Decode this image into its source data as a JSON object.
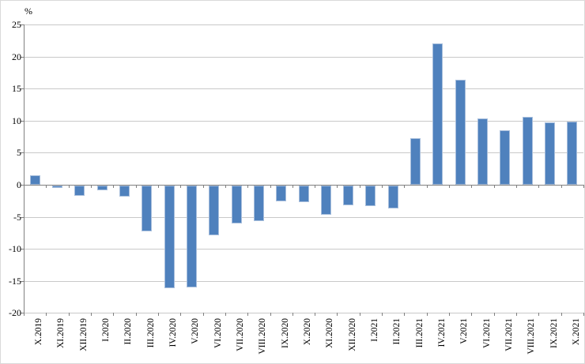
{
  "chart_data": {
    "type": "bar",
    "title": "",
    "xlabel": "",
    "ylabel": "%",
    "categories": [
      "X.2019",
      "XI.2019",
      "XII.2019",
      "I.2020",
      "II.2020",
      "III.2020",
      "IV.2020",
      "V.2020",
      "VI.2020",
      "VII.2020",
      "VIII.2020",
      "IX.2020",
      "X.2020",
      "XI.2020",
      "XII.2020",
      "I.2021",
      "II.2021",
      "III.2021",
      "IV.2021",
      "V.2021",
      "VI.2021",
      "VII.2021",
      "VIII.2021",
      "IX.2021",
      "X.2021"
    ],
    "values": [
      1.5,
      -0.4,
      -1.6,
      -0.7,
      -1.7,
      -7.1,
      -16.0,
      -15.9,
      -7.7,
      -5.9,
      -5.5,
      -2.5,
      -2.6,
      -4.5,
      -3.1,
      -3.2,
      -3.6,
      7.3,
      22.1,
      16.4,
      10.4,
      8.5,
      10.6,
      9.7,
      9.8
    ],
    "ylim": [
      -20,
      25
    ],
    "yticks": [
      25,
      20,
      15,
      10,
      5,
      0,
      -5,
      -10,
      -15,
      -20
    ],
    "grid": true,
    "legend": false,
    "colors": {
      "bar_fill": "#4f81bd",
      "bar_border": "#a7bedc",
      "gridline": "#c9c9c9",
      "axis": "#808080",
      "text": "#000000",
      "background": "#ffffff"
    }
  }
}
